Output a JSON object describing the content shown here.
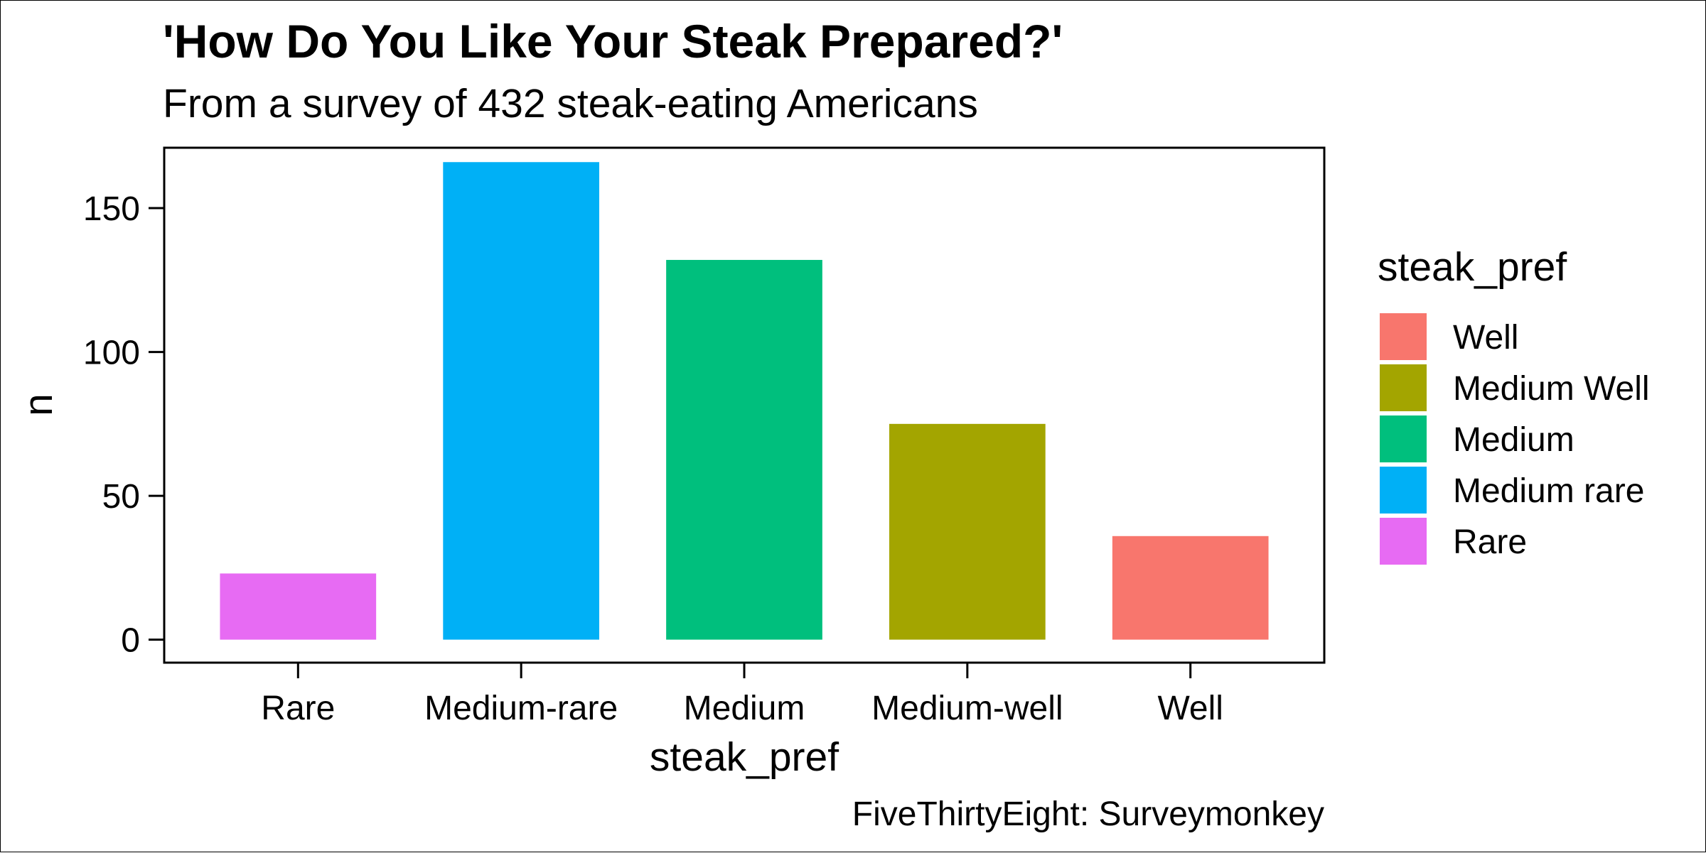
{
  "chart_data": {
    "type": "bar",
    "title": "'How Do You Like Your Steak Prepared?'",
    "subtitle": "From a survey of 432 steak-eating Americans",
    "xlabel": "steak_pref",
    "ylabel": "n",
    "caption": "FiveThirtyEight: Surveymonkey",
    "categories": [
      "Rare",
      "Medium-rare",
      "Medium",
      "Medium-well",
      "Well"
    ],
    "values": [
      23,
      166,
      132,
      75,
      36
    ],
    "bar_colors": [
      "#E76BF3",
      "#00B0F6",
      "#00BF7D",
      "#A3A500",
      "#F8766D"
    ],
    "ylim": [
      -8,
      171
    ],
    "yticks": [
      0,
      50,
      100,
      150
    ],
    "grid": false,
    "legend": {
      "title": "steak_pref",
      "placement": "right",
      "items": [
        {
          "label": "Well",
          "color": "#F8766D"
        },
        {
          "label": "Medium Well",
          "color": "#A3A500"
        },
        {
          "label": "Medium",
          "color": "#00BF7D"
        },
        {
          "label": "Medium rare",
          "color": "#00B0F6"
        },
        {
          "label": "Rare",
          "color": "#E76BF3"
        }
      ]
    }
  }
}
